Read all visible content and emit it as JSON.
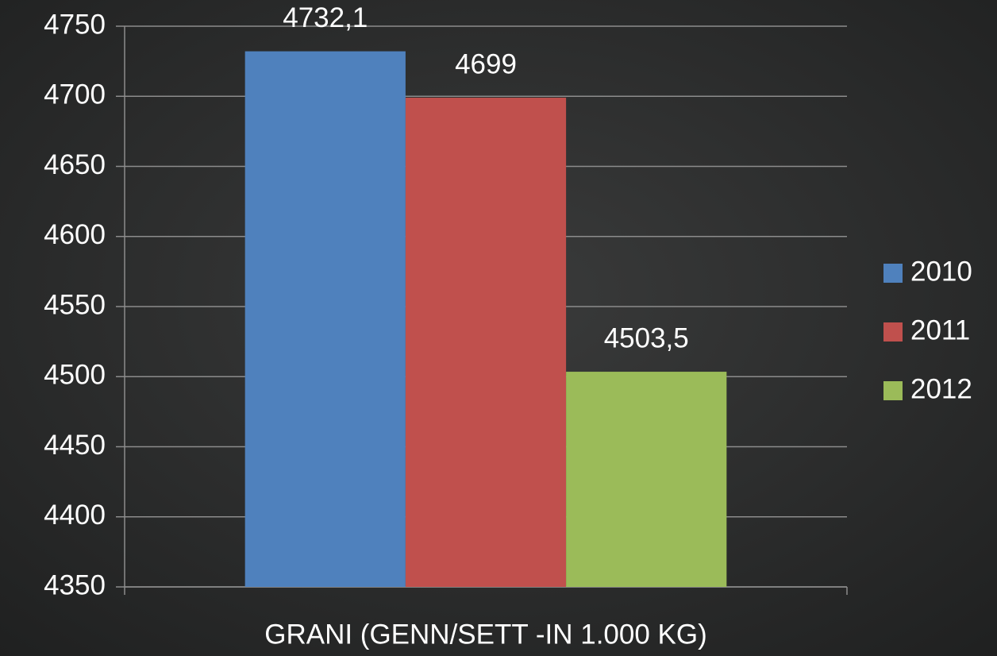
{
  "chart_data": {
    "type": "bar",
    "categories": [
      "GRANI (GENN/SETT -IN 1.000 KG)"
    ],
    "series": [
      {
        "name": "2010",
        "color": "#4f81bd",
        "values": [
          4732.1
        ],
        "value_labels": [
          "4732,1"
        ]
      },
      {
        "name": "2011",
        "color": "#c0504d",
        "values": [
          4699
        ],
        "value_labels": [
          "4699"
        ]
      },
      {
        "name": "2012",
        "color": "#9bbb59",
        "values": [
          4503.5
        ],
        "value_labels": [
          "4503,5"
        ]
      }
    ],
    "ylim": [
      4350,
      4750
    ],
    "yticks": [
      4350,
      4400,
      4450,
      4500,
      4550,
      4600,
      4650,
      4700,
      4750
    ],
    "grid": true,
    "legend": "right"
  }
}
